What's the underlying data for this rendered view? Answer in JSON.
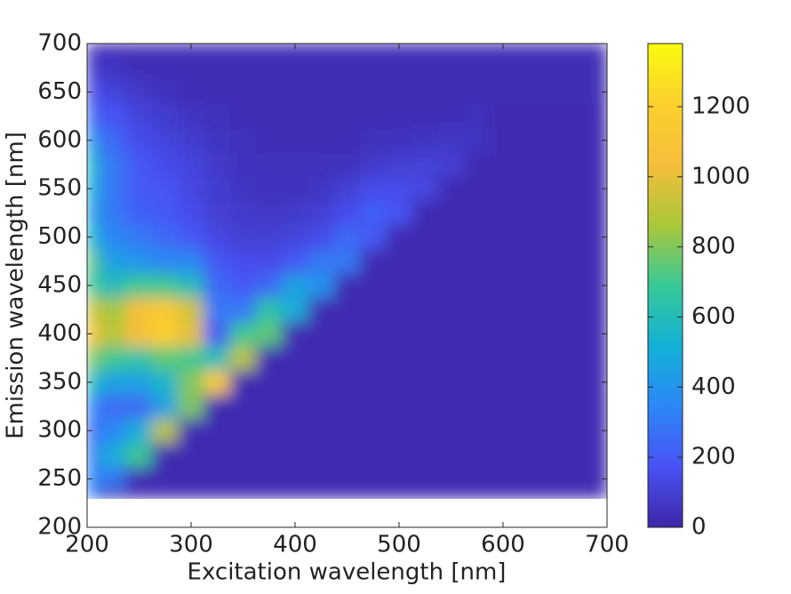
{
  "chart_data": {
    "type": "heatmap",
    "xlabel": "Excitation wavelength [nm]",
    "ylabel": "Emission wavelength [nm]",
    "xlim": [
      200,
      700
    ],
    "ylim": [
      200,
      700
    ],
    "xticks": [
      200,
      300,
      400,
      500,
      600,
      700
    ],
    "yticks": [
      200,
      250,
      300,
      350,
      400,
      450,
      500,
      550,
      600,
      650,
      700
    ],
    "clim": [
      0,
      1380
    ],
    "cticks": [
      0,
      200,
      400,
      600,
      800,
      1000,
      1200
    ],
    "colormap": [
      "#3e26a8",
      "#4852f4",
      "#2d87f7",
      "#12b1d6",
      "#37c897",
      "#abc739",
      "#f5be3a",
      "#fdd02e",
      "#f9fb0e"
    ],
    "x": [
      200,
      225,
      250,
      275,
      300,
      325,
      350,
      375,
      400,
      425,
      450,
      475,
      500,
      525,
      550,
      575,
      600,
      625,
      650,
      675,
      700
    ],
    "y": [
      230,
      250,
      275,
      300,
      325,
      350,
      375,
      400,
      425,
      450,
      475,
      500,
      525,
      550,
      575,
      600,
      625,
      650,
      675,
      700
    ],
    "z": [
      [
        300,
        20,
        20,
        20,
        20,
        20,
        20,
        20,
        20,
        20,
        20,
        20,
        20,
        20,
        20,
        20,
        20,
        20,
        20,
        20,
        20
      ],
      [
        350,
        300,
        20,
        20,
        20,
        20,
        20,
        20,
        20,
        20,
        20,
        20,
        20,
        20,
        20,
        20,
        20,
        20,
        20,
        20,
        20
      ],
      [
        300,
        500,
        700,
        20,
        20,
        20,
        20,
        20,
        20,
        20,
        20,
        20,
        20,
        20,
        20,
        20,
        20,
        20,
        20,
        20,
        20
      ],
      [
        250,
        350,
        500,
        900,
        20,
        20,
        20,
        20,
        20,
        20,
        20,
        20,
        20,
        20,
        20,
        20,
        20,
        20,
        20,
        20,
        20
      ],
      [
        350,
        250,
        250,
        450,
        800,
        20,
        20,
        20,
        20,
        20,
        20,
        20,
        20,
        20,
        20,
        20,
        20,
        20,
        20,
        20,
        20
      ],
      [
        600,
        450,
        450,
        550,
        800,
        1150,
        20,
        20,
        20,
        20,
        20,
        20,
        20,
        20,
        20,
        20,
        20,
        20,
        20,
        20,
        20
      ],
      [
        800,
        700,
        650,
        750,
        700,
        600,
        900,
        20,
        20,
        20,
        20,
        20,
        20,
        20,
        20,
        20,
        20,
        20,
        20,
        20,
        20
      ],
      [
        1050,
        900,
        1050,
        1200,
        1000,
        200,
        700,
        750,
        20,
        20,
        20,
        20,
        20,
        20,
        20,
        20,
        20,
        20,
        20,
        20,
        20
      ],
      [
        950,
        850,
        1050,
        1150,
        950,
        300,
        300,
        650,
        500,
        20,
        20,
        20,
        20,
        20,
        20,
        20,
        20,
        20,
        20,
        20,
        20
      ],
      [
        700,
        600,
        700,
        700,
        600,
        250,
        200,
        250,
        450,
        400,
        20,
        20,
        20,
        20,
        20,
        20,
        20,
        20,
        20,
        20,
        20
      ],
      [
        750,
        450,
        400,
        350,
        350,
        200,
        150,
        150,
        200,
        300,
        300,
        20,
        20,
        20,
        20,
        20,
        20,
        20,
        20,
        20,
        20
      ],
      [
        550,
        350,
        300,
        250,
        200,
        130,
        100,
        100,
        120,
        150,
        250,
        200,
        20,
        20,
        20,
        20,
        20,
        20,
        20,
        20,
        20
      ],
      [
        450,
        300,
        220,
        200,
        150,
        100,
        80,
        70,
        80,
        100,
        150,
        220,
        180,
        20,
        20,
        20,
        20,
        20,
        20,
        20,
        20
      ],
      [
        500,
        300,
        200,
        180,
        130,
        90,
        60,
        50,
        50,
        60,
        100,
        150,
        150,
        130,
        20,
        20,
        20,
        20,
        20,
        20,
        20
      ],
      [
        550,
        300,
        200,
        150,
        120,
        80,
        50,
        40,
        40,
        40,
        50,
        80,
        100,
        110,
        100,
        20,
        20,
        20,
        20,
        20,
        20
      ],
      [
        400,
        250,
        150,
        120,
        90,
        60,
        40,
        30,
        30,
        30,
        30,
        40,
        50,
        60,
        70,
        60,
        20,
        20,
        20,
        20,
        20
      ],
      [
        250,
        180,
        120,
        90,
        60,
        40,
        30,
        30,
        30,
        30,
        30,
        30,
        30,
        30,
        30,
        40,
        20,
        20,
        20,
        20,
        20
      ],
      [
        150,
        120,
        80,
        50,
        30,
        30,
        30,
        30,
        30,
        30,
        30,
        30,
        30,
        30,
        30,
        30,
        30,
        30,
        30,
        30,
        30
      ],
      [
        80,
        60,
        30,
        30,
        30,
        30,
        30,
        30,
        30,
        30,
        30,
        30,
        30,
        30,
        30,
        30,
        30,
        30,
        30,
        30,
        30
      ],
      [
        30,
        30,
        30,
        30,
        30,
        30,
        30,
        30,
        30,
        30,
        30,
        30,
        30,
        30,
        30,
        30,
        30,
        30,
        30,
        30,
        30
      ]
    ]
  }
}
